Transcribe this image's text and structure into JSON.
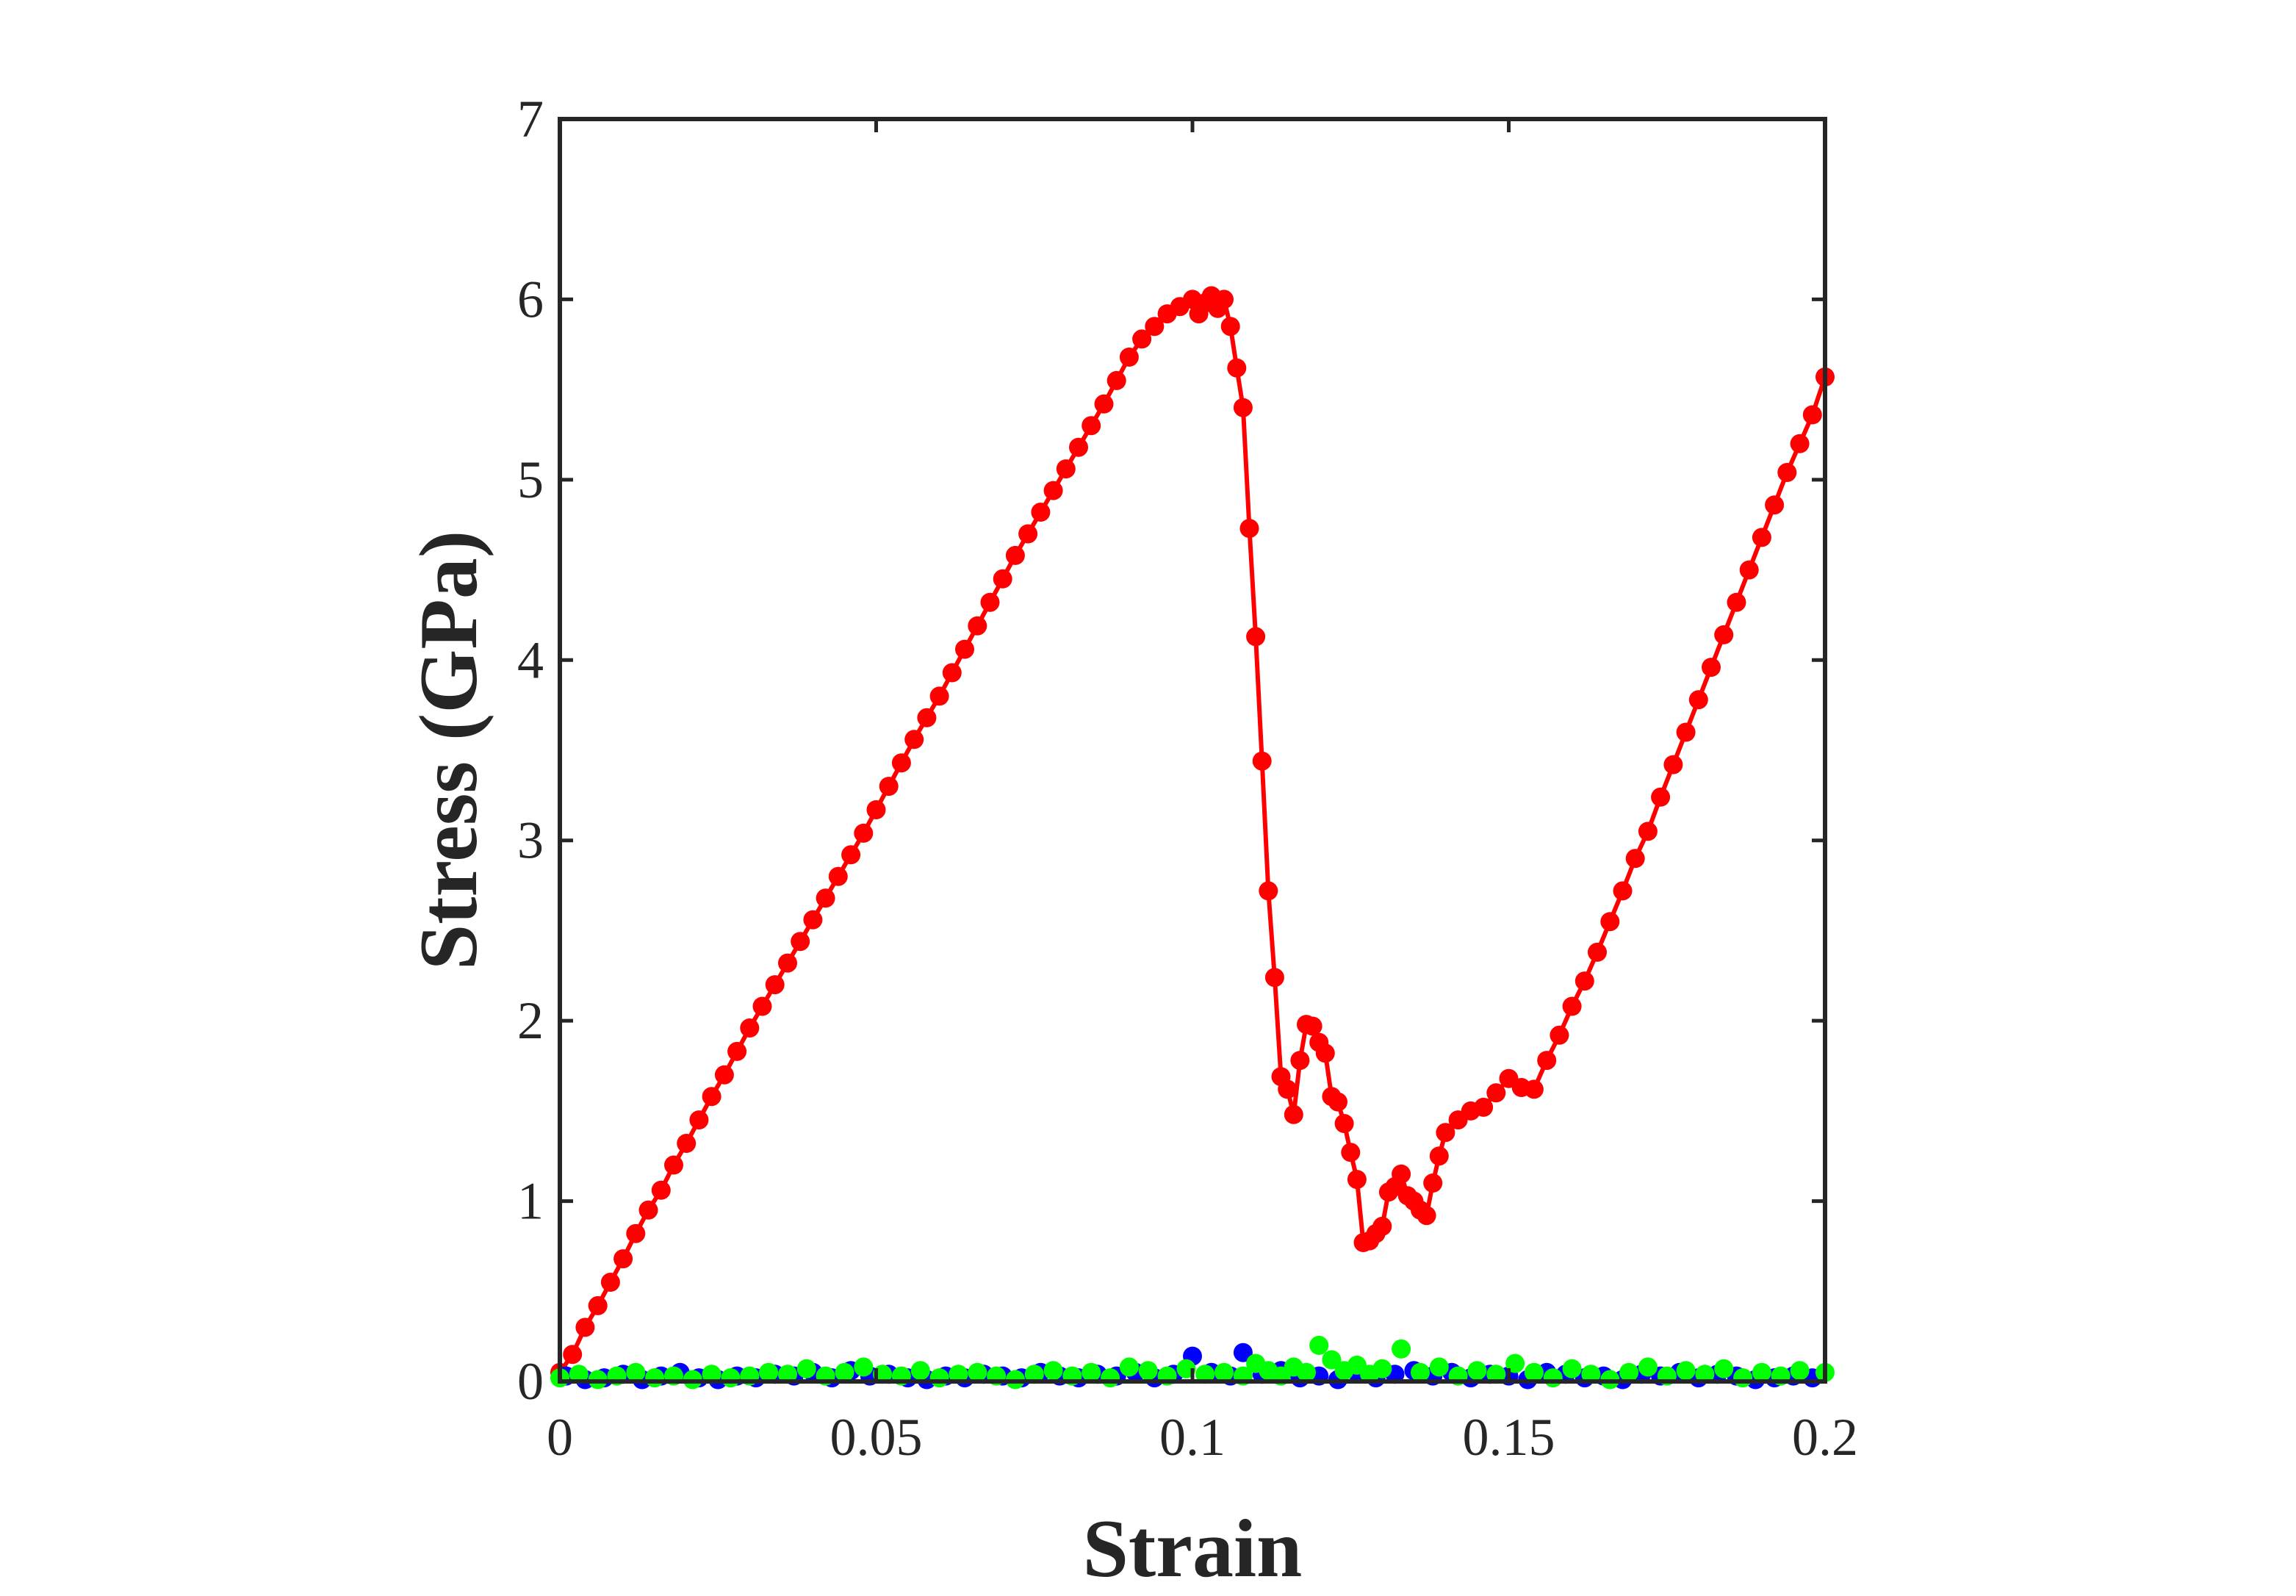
{
  "chart_data": {
    "type": "line",
    "title": "",
    "xlabel": "Strain",
    "ylabel": "Stress (GPa)",
    "xlim": [
      0,
      0.2
    ],
    "ylim": [
      0,
      7
    ],
    "xticks": [
      0,
      0.05,
      0.1,
      0.15,
      0.2
    ],
    "xtick_labels": [
      "0",
      "0.05",
      "0.1",
      "0.15",
      "0.2"
    ],
    "yticks": [
      0,
      1,
      2,
      3,
      4,
      5,
      6,
      7
    ],
    "ytick_labels": [
      "0",
      "1",
      "2",
      "3",
      "4",
      "5",
      "6",
      "7"
    ],
    "grid": false,
    "legend": "none",
    "series": [
      {
        "color": "#ff0000",
        "marker": "circle",
        "line": true,
        "x": [
          0,
          0.002,
          0.004,
          0.006,
          0.008,
          0.01,
          0.012,
          0.014,
          0.016,
          0.018,
          0.02,
          0.022,
          0.024,
          0.026,
          0.028,
          0.03,
          0.032,
          0.034,
          0.036,
          0.038,
          0.04,
          0.042,
          0.044,
          0.046,
          0.048,
          0.05,
          0.052,
          0.054,
          0.056,
          0.058,
          0.06,
          0.062,
          0.064,
          0.066,
          0.068,
          0.07,
          0.072,
          0.074,
          0.076,
          0.078,
          0.08,
          0.082,
          0.084,
          0.086,
          0.088,
          0.09,
          0.092,
          0.094,
          0.096,
          0.098,
          0.1,
          0.101,
          0.102,
          0.103,
          0.104,
          0.105,
          0.106,
          0.107,
          0.108,
          0.109,
          0.11,
          0.111,
          0.112,
          0.113,
          0.114,
          0.115,
          0.116,
          0.117,
          0.118,
          0.119,
          0.12,
          0.121,
          0.122,
          0.123,
          0.124,
          0.125,
          0.126,
          0.127,
          0.128,
          0.129,
          0.13,
          0.131,
          0.132,
          0.133,
          0.134,
          0.135,
          0.136,
          0.137,
          0.138,
          0.139,
          0.14,
          0.142,
          0.144,
          0.146,
          0.148,
          0.15,
          0.152,
          0.154,
          0.156,
          0.158,
          0.16,
          0.162,
          0.164,
          0.166,
          0.168,
          0.17,
          0.172,
          0.174,
          0.176,
          0.178,
          0.18,
          0.182,
          0.184,
          0.186,
          0.188,
          0.19,
          0.192,
          0.194,
          0.196,
          0.198,
          0.2
        ],
        "y": [
          0.05,
          0.15,
          0.3,
          0.42,
          0.55,
          0.68,
          0.82,
          0.95,
          1.06,
          1.2,
          1.32,
          1.45,
          1.58,
          1.7,
          1.83,
          1.96,
          2.08,
          2.2,
          2.32,
          2.44,
          2.56,
          2.68,
          2.8,
          2.92,
          3.04,
          3.17,
          3.3,
          3.43,
          3.56,
          3.68,
          3.8,
          3.93,
          4.06,
          4.19,
          4.32,
          4.45,
          4.58,
          4.7,
          4.82,
          4.94,
          5.06,
          5.18,
          5.3,
          5.42,
          5.55,
          5.68,
          5.78,
          5.85,
          5.92,
          5.96,
          6.0,
          5.92,
          5.98,
          6.02,
          5.95,
          6.0,
          5.85,
          5.62,
          5.4,
          4.73,
          4.13,
          3.44,
          2.72,
          2.24,
          1.69,
          1.62,
          1.48,
          1.78,
          1.98,
          1.97,
          1.88,
          1.82,
          1.58,
          1.55,
          1.43,
          1.27,
          1.12,
          0.77,
          0.78,
          0.82,
          0.86,
          1.05,
          1.08,
          1.15,
          1.03,
          1.0,
          0.95,
          0.92,
          1.1,
          1.25,
          1.38,
          1.45,
          1.5,
          1.52,
          1.6,
          1.68,
          1.63,
          1.62,
          1.78,
          1.92,
          2.08,
          2.22,
          2.38,
          2.55,
          2.72,
          2.9,
          3.05,
          3.24,
          3.42,
          3.6,
          3.78,
          3.96,
          4.14,
          4.32,
          4.5,
          4.68,
          4.86,
          5.04,
          5.2,
          5.36,
          5.57
        ]
      },
      {
        "color": "#0000ff",
        "marker": "circle",
        "line": false,
        "x": [
          0.001,
          0.004,
          0.007,
          0.01,
          0.013,
          0.016,
          0.019,
          0.022,
          0.025,
          0.028,
          0.031,
          0.034,
          0.037,
          0.04,
          0.043,
          0.046,
          0.049,
          0.052,
          0.055,
          0.058,
          0.061,
          0.064,
          0.067,
          0.07,
          0.073,
          0.076,
          0.079,
          0.082,
          0.085,
          0.088,
          0.091,
          0.094,
          0.097,
          0.1,
          0.103,
          0.106,
          0.108,
          0.111,
          0.114,
          0.117,
          0.12,
          0.123,
          0.126,
          0.129,
          0.132,
          0.135,
          0.138,
          0.141,
          0.144,
          0.147,
          0.15,
          0.153,
          0.156,
          0.159,
          0.162,
          0.165,
          0.168,
          0.171,
          0.174,
          0.177,
          0.18,
          0.183,
          0.186,
          0.189,
          0.192,
          0.195,
          0.198
        ],
        "y": [
          0.03,
          0.01,
          0.02,
          0.04,
          0.01,
          0.03,
          0.05,
          0.02,
          0.01,
          0.03,
          0.02,
          0.04,
          0.03,
          0.05,
          0.02,
          0.06,
          0.03,
          0.04,
          0.02,
          0.01,
          0.03,
          0.02,
          0.04,
          0.03,
          0.02,
          0.05,
          0.03,
          0.02,
          0.04,
          0.03,
          0.05,
          0.02,
          0.04,
          0.14,
          0.05,
          0.03,
          0.16,
          0.04,
          0.06,
          0.02,
          0.03,
          0.01,
          0.05,
          0.02,
          0.04,
          0.06,
          0.03,
          0.05,
          0.02,
          0.04,
          0.03,
          0.01,
          0.05,
          0.04,
          0.02,
          0.03,
          0.01,
          0.04,
          0.03,
          0.05,
          0.02,
          0.04,
          0.03,
          0.01,
          0.02,
          0.03,
          0.02
        ]
      },
      {
        "color": "#00ff00",
        "marker": "circle",
        "line": false,
        "x": [
          0,
          0.003,
          0.006,
          0.009,
          0.012,
          0.015,
          0.018,
          0.021,
          0.024,
          0.027,
          0.03,
          0.033,
          0.036,
          0.039,
          0.042,
          0.045,
          0.048,
          0.051,
          0.054,
          0.057,
          0.06,
          0.063,
          0.066,
          0.069,
          0.072,
          0.075,
          0.078,
          0.081,
          0.084,
          0.087,
          0.09,
          0.093,
          0.096,
          0.099,
          0.102,
          0.105,
          0.108,
          0.11,
          0.112,
          0.114,
          0.116,
          0.118,
          0.12,
          0.122,
          0.124,
          0.126,
          0.128,
          0.13,
          0.133,
          0.136,
          0.139,
          0.142,
          0.145,
          0.148,
          0.151,
          0.154,
          0.157,
          0.16,
          0.163,
          0.166,
          0.169,
          0.172,
          0.175,
          0.178,
          0.181,
          0.184,
          0.187,
          0.19,
          0.193,
          0.196,
          0.2
        ],
        "y": [
          0.02,
          0.04,
          0.01,
          0.03,
          0.05,
          0.02,
          0.03,
          0.01,
          0.04,
          0.02,
          0.03,
          0.05,
          0.04,
          0.07,
          0.03,
          0.05,
          0.08,
          0.04,
          0.03,
          0.06,
          0.02,
          0.04,
          0.05,
          0.03,
          0.01,
          0.04,
          0.06,
          0.03,
          0.05,
          0.02,
          0.08,
          0.06,
          0.03,
          0.07,
          0.04,
          0.05,
          0.03,
          0.1,
          0.06,
          0.03,
          0.08,
          0.05,
          0.2,
          0.12,
          0.06,
          0.09,
          0.04,
          0.07,
          0.18,
          0.05,
          0.08,
          0.03,
          0.06,
          0.04,
          0.1,
          0.05,
          0.02,
          0.07,
          0.04,
          0.01,
          0.05,
          0.08,
          0.03,
          0.06,
          0.04,
          0.07,
          0.02,
          0.05,
          0.03,
          0.06,
          0.05
        ]
      }
    ]
  }
}
